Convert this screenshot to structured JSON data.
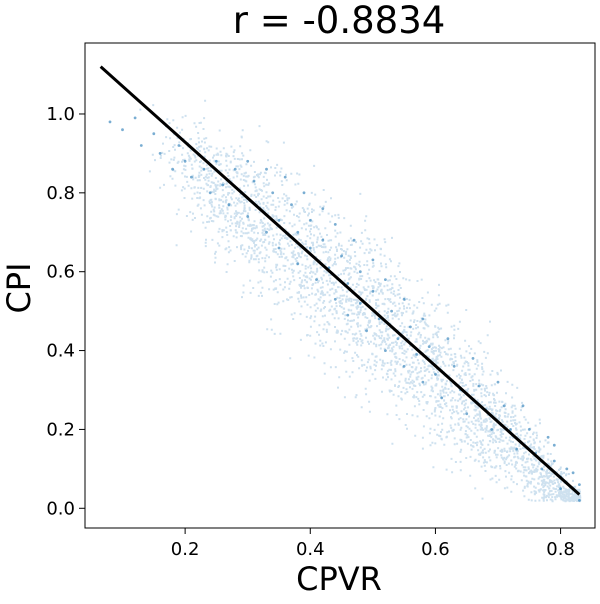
{
  "chart_data": {
    "type": "scatter",
    "title": "r = -0.8834",
    "xlabel": "CPVR",
    "ylabel": "CPI",
    "xlim": [
      0.04,
      0.855
    ],
    "ylim": [
      -0.05,
      1.18
    ],
    "xticks": [
      {
        "value": 0.2,
        "label": "0.2"
      },
      {
        "value": 0.4,
        "label": "0.4"
      },
      {
        "value": 0.6,
        "label": "0.6"
      },
      {
        "value": 0.8,
        "label": "0.8"
      }
    ],
    "yticks": [
      {
        "value": 0.0,
        "label": "0.0"
      },
      {
        "value": 0.2,
        "label": "0.2"
      },
      {
        "value": 0.4,
        "label": "0.4"
      },
      {
        "value": 0.6,
        "label": "0.6"
      },
      {
        "value": 0.8,
        "label": "0.8"
      },
      {
        "value": 1.0,
        "label": "1.0"
      }
    ],
    "grid": false,
    "legend": "none",
    "series": [
      {
        "kind": "scatter",
        "color": "#1f77b4",
        "points": [
          [
            0.08,
            0.98
          ],
          [
            0.1,
            0.96
          ],
          [
            0.12,
            0.99
          ],
          [
            0.13,
            0.92
          ],
          [
            0.15,
            0.95
          ],
          [
            0.16,
            0.9
          ],
          [
            0.17,
            0.97
          ],
          [
            0.18,
            0.86
          ],
          [
            0.19,
            0.92
          ],
          [
            0.2,
            0.88
          ],
          [
            0.21,
            0.84
          ],
          [
            0.22,
            0.9
          ],
          [
            0.23,
            0.86
          ],
          [
            0.24,
            0.8
          ],
          [
            0.25,
            0.88
          ],
          [
            0.26,
            0.82
          ],
          [
            0.27,
            0.77
          ],
          [
            0.28,
            0.86
          ],
          [
            0.29,
            0.8
          ],
          [
            0.3,
            0.74
          ],
          [
            0.3,
            0.88
          ],
          [
            0.31,
            0.83
          ],
          [
            0.32,
            0.76
          ],
          [
            0.33,
            0.7
          ],
          [
            0.33,
            0.86
          ],
          [
            0.34,
            0.8
          ],
          [
            0.35,
            0.73
          ],
          [
            0.35,
            0.66
          ],
          [
            0.36,
            0.84
          ],
          [
            0.37,
            0.77
          ],
          [
            0.38,
            0.7
          ],
          [
            0.38,
            0.62
          ],
          [
            0.39,
            0.8
          ],
          [
            0.4,
            0.73
          ],
          [
            0.4,
            0.66
          ],
          [
            0.41,
            0.58
          ],
          [
            0.42,
            0.76
          ],
          [
            0.42,
            0.68
          ],
          [
            0.43,
            0.61
          ],
          [
            0.44,
            0.53
          ],
          [
            0.44,
            0.72
          ],
          [
            0.45,
            0.64
          ],
          [
            0.46,
            0.57
          ],
          [
            0.46,
            0.49
          ],
          [
            0.47,
            0.68
          ],
          [
            0.48,
            0.6
          ],
          [
            0.48,
            0.52
          ],
          [
            0.49,
            0.45
          ],
          [
            0.5,
            0.63
          ],
          [
            0.5,
            0.55
          ],
          [
            0.51,
            0.48
          ],
          [
            0.52,
            0.4
          ],
          [
            0.52,
            0.58
          ],
          [
            0.53,
            0.5
          ],
          [
            0.54,
            0.43
          ],
          [
            0.55,
            0.36
          ],
          [
            0.55,
            0.53
          ],
          [
            0.56,
            0.46
          ],
          [
            0.57,
            0.39
          ],
          [
            0.58,
            0.32
          ],
          [
            0.58,
            0.48
          ],
          [
            0.59,
            0.41
          ],
          [
            0.6,
            0.34
          ],
          [
            0.61,
            0.28
          ],
          [
            0.62,
            0.43
          ],
          [
            0.63,
            0.36
          ],
          [
            0.64,
            0.3
          ],
          [
            0.65,
            0.24
          ],
          [
            0.66,
            0.38
          ],
          [
            0.67,
            0.31
          ],
          [
            0.68,
            0.25
          ],
          [
            0.69,
            0.2
          ],
          [
            0.7,
            0.32
          ],
          [
            0.71,
            0.26
          ],
          [
            0.72,
            0.2
          ],
          [
            0.73,
            0.15
          ],
          [
            0.74,
            0.26
          ],
          [
            0.75,
            0.2
          ],
          [
            0.76,
            0.14
          ],
          [
            0.77,
            0.1
          ],
          [
            0.78,
            0.18
          ],
          [
            0.79,
            0.12
          ],
          [
            0.8,
            0.08
          ],
          [
            0.81,
            0.1
          ],
          [
            0.82,
            0.05
          ],
          [
            0.83,
            0.02
          ],
          [
            0.83,
            0.06
          ],
          [
            0.82,
            0.09
          ],
          [
            0.8,
            0.05
          ],
          [
            0.79,
            0.16
          ]
        ]
      },
      {
        "kind": "line",
        "color": "#000000",
        "points": [
          [
            0.065,
            1.12
          ],
          [
            0.83,
            0.035
          ]
        ]
      }
    ]
  }
}
